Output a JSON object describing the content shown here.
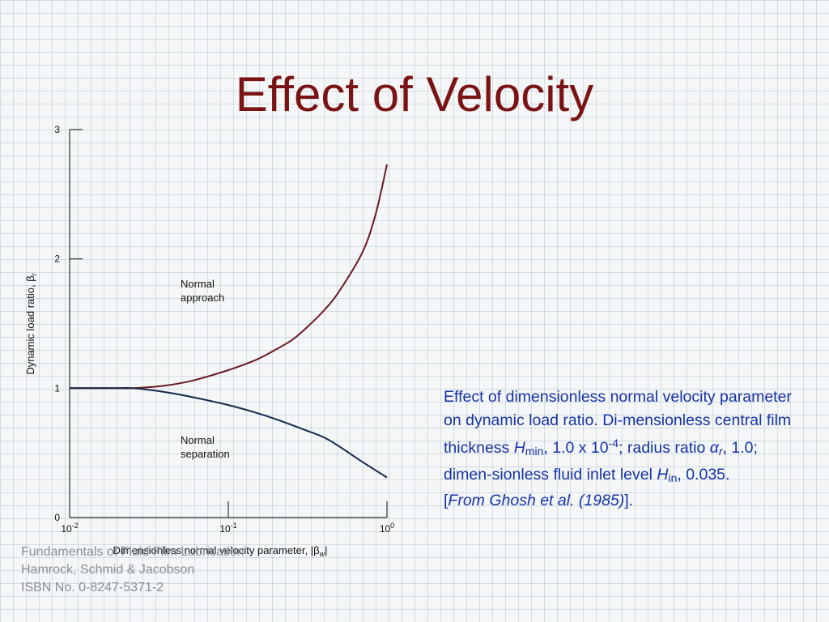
{
  "slide": {
    "title": "Effect of Velocity"
  },
  "chart_data": {
    "type": "line",
    "xlabel": "Dimensionless normal velocity parameter, |β",
    "xlabel_sub": "w",
    "xlabel_end": "|",
    "ylabel": "Dynamic load ratio, β",
    "ylabel_sub": "r",
    "x_scale": "log",
    "xlim": [
      0.01,
      1
    ],
    "ylim": [
      0,
      3
    ],
    "x_ticks": [
      {
        "base": "10",
        "exp": "-2",
        "value": 0.01
      },
      {
        "base": "10",
        "exp": "-1",
        "value": 0.1
      },
      {
        "base": "10",
        "exp": "0",
        "value": 1
      }
    ],
    "y_ticks": [
      "0",
      "1",
      "2",
      "3"
    ],
    "y_tick_values": [
      0,
      1,
      2,
      3
    ],
    "grid": false,
    "series": [
      {
        "name": "Normal approach",
        "label_lines": [
          "Normal",
          "approach"
        ],
        "color": "#6b1a22",
        "x": [
          0.01,
          0.02,
          0.025,
          0.04,
          0.06,
          0.1,
          0.15,
          0.2,
          0.25,
          0.3,
          0.4,
          0.5,
          0.7,
          0.85,
          1.0
        ],
        "y": [
          1.0,
          1.0,
          1.0,
          1.02,
          1.06,
          1.14,
          1.22,
          1.3,
          1.37,
          1.45,
          1.6,
          1.75,
          2.05,
          2.35,
          2.73
        ]
      },
      {
        "name": "Normal separation",
        "label_lines": [
          "Normal",
          "separation"
        ],
        "color": "#15284a",
        "x": [
          0.01,
          0.02,
          0.025,
          0.04,
          0.06,
          0.1,
          0.15,
          0.2,
          0.3,
          0.4,
          0.5,
          0.7,
          1.0
        ],
        "y": [
          1.0,
          1.0,
          1.0,
          0.97,
          0.93,
          0.87,
          0.81,
          0.76,
          0.68,
          0.62,
          0.55,
          0.43,
          0.31
        ]
      }
    ]
  },
  "caption": {
    "part1": "Effect of dimensionless normal velocity parameter on dynamic load ratio. Di-mensionless central film thickness ",
    "h_min": "H",
    "h_min_sub": "min",
    "part2": ", 1.0 x 10",
    "exp": "-4",
    "part3": "; radius ratio ",
    "alpha": "α",
    "alpha_sub": "r",
    "part4": ", 1.0; dimen-sionless fluid inlet level ",
    "h_in": "H",
    "h_in_sub": "in",
    "part5": ", 0.035.",
    "source_open": "[",
    "source": "From Ghosh et al. (1985)",
    "source_close": "]."
  },
  "footer": {
    "line1": "Fundamentals of Fluid Film Lubrication",
    "line2": "Hamrock, Schmid & Jacobson",
    "line3": "ISBN No. 0-8247-5371-2"
  }
}
